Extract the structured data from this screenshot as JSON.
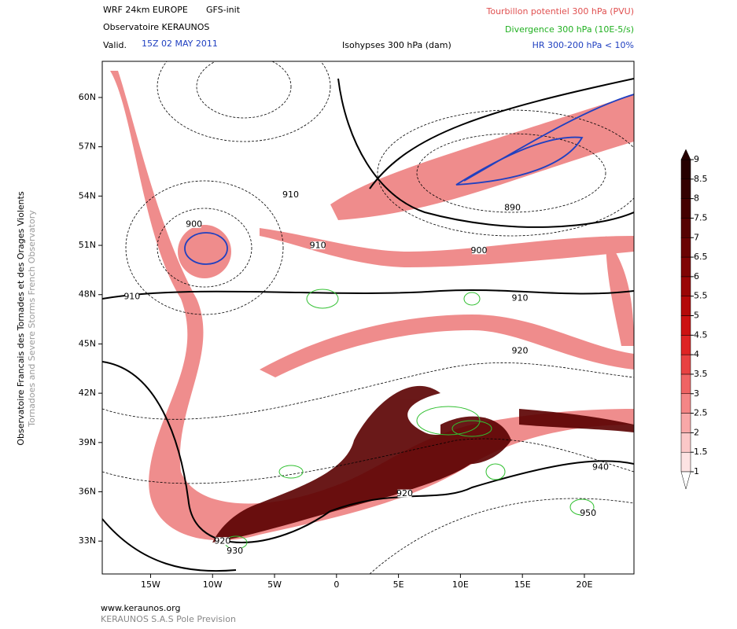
{
  "header": {
    "model": "WRF 24km EUROPE",
    "init": "GFS-init",
    "org": "Observatoire KERAUNOS",
    "valid_label": "Valid.",
    "valid_time": "15Z 02 MAY 2011",
    "title": "Tourbillon potentiel 300 hPa (PVU)",
    "divergence": "Divergence 300 hPa (10E-5/s)",
    "isohypses": "Isohypses 300 hPa (dam)",
    "humidity": "HR 300-200 hPa < 10%"
  },
  "map": {
    "xlim": [
      -18.9,
      24
    ],
    "ylim": [
      31,
      62.2
    ],
    "lat_ticks": [
      {
        "value": 60,
        "label": "60N"
      },
      {
        "value": 57,
        "label": "57N"
      },
      {
        "value": 54,
        "label": "54N"
      },
      {
        "value": 51,
        "label": "51N"
      },
      {
        "value": 48,
        "label": "48N"
      },
      {
        "value": 45,
        "label": "45N"
      },
      {
        "value": 42,
        "label": "42N"
      },
      {
        "value": 39,
        "label": "39N"
      },
      {
        "value": 36,
        "label": "36N"
      },
      {
        "value": 33,
        "label": "33N"
      }
    ],
    "lon_ticks": [
      {
        "value": -15,
        "label": "15W"
      },
      {
        "value": -10,
        "label": "10W"
      },
      {
        "value": -5,
        "label": "5W"
      },
      0,
      {
        "value": 5,
        "label": "5E"
      },
      {
        "value": 10,
        "label": "10E"
      },
      {
        "value": 15,
        "label": "15E"
      },
      {
        "value": 20,
        "label": "20E"
      }
    ],
    "contour_labels": [
      {
        "text": "900",
        "lon": -11.5,
        "lat": 52.3
      },
      {
        "text": "910",
        "lon": -3.7,
        "lat": 54.1
      },
      {
        "text": "910",
        "lon": -1.5,
        "lat": 51.0
      },
      {
        "text": "910",
        "lon": -16.5,
        "lat": 47.9
      },
      {
        "text": "890",
        "lon": 14.2,
        "lat": 53.3
      },
      {
        "text": "900",
        "lon": 11.5,
        "lat": 50.7
      },
      {
        "text": "910",
        "lon": 14.8,
        "lat": 47.8
      },
      {
        "text": "920",
        "lon": 14.8,
        "lat": 44.6
      },
      {
        "text": "920",
        "lon": 5.5,
        "lat": 35.9
      },
      {
        "text": "920",
        "lon": -9.2,
        "lat": 33.0
      },
      {
        "text": "930",
        "lon": -8.2,
        "lat": 32.4
      },
      {
        "text": "940",
        "lon": 21.3,
        "lat": 37.5
      },
      {
        "text": "950",
        "lon": 20.3,
        "lat": 34.7
      }
    ]
  },
  "colorbar": {
    "levels": [
      1,
      1.5,
      2,
      2.5,
      3,
      3.5,
      4,
      4.5,
      5,
      5.5,
      6,
      6.5,
      7,
      7.5,
      8,
      8.5,
      9
    ],
    "colors": [
      "#fde3e3",
      "#fbc8c8",
      "#f8a8a8",
      "#f48686",
      "#ef6464",
      "#e84242",
      "#de2424",
      "#cc1212",
      "#b40a0a",
      "#9a0606",
      "#800404",
      "#6a0303",
      "#560202",
      "#440101",
      "#340101",
      "#260000"
    ]
  },
  "side": {
    "fr": "Observatoire Francais des Tornades et des Orages Violents",
    "en": "Tornadoes and Severe Storms French Observatory"
  },
  "footer": {
    "url": "www.keraunos.org",
    "company": "KERAUNOS S.A.S Pole Prevision"
  }
}
